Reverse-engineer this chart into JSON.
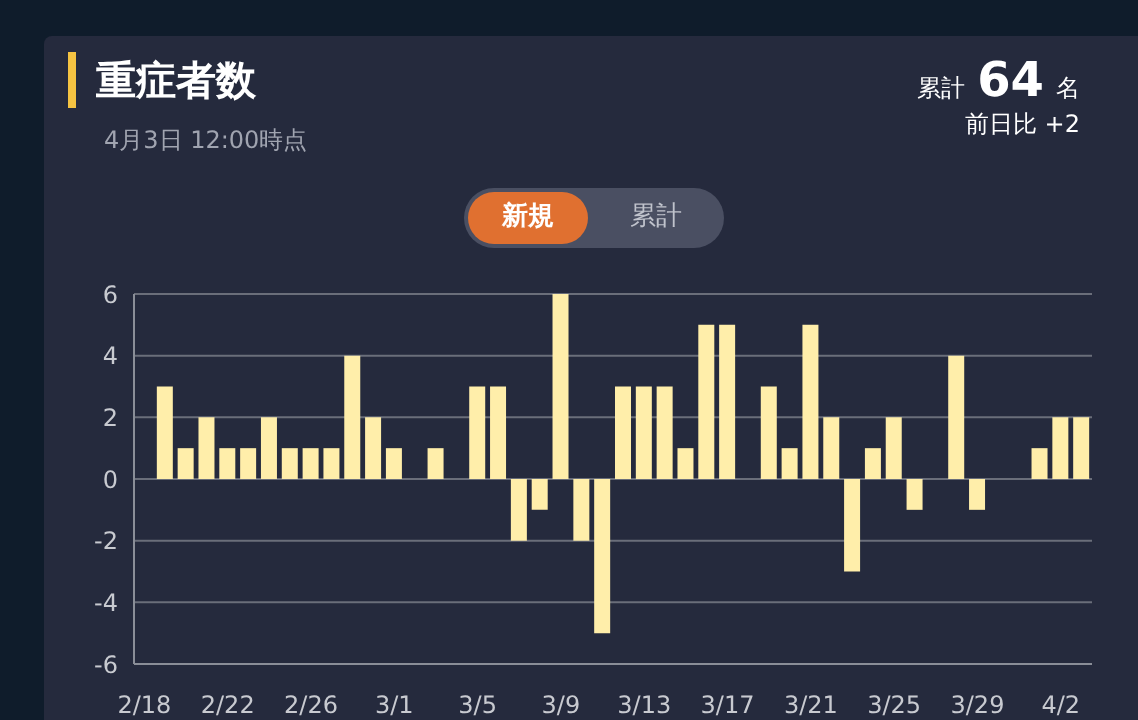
{
  "chart_data": {
    "type": "bar",
    "title": "重症者数",
    "subtitle": "4月3日 12:00時点",
    "annotations": [
      "累計",
      "64",
      "名",
      "前日比 +2",
      "新規",
      "累計"
    ],
    "categories": [
      "2/18",
      null,
      null,
      null,
      "2/22",
      null,
      null,
      null,
      "2/26",
      null,
      null,
      null,
      "3/1",
      null,
      null,
      null,
      "3/5",
      null,
      null,
      null,
      "3/9",
      null,
      null,
      null,
      "3/13",
      null,
      null,
      null,
      "3/17",
      null,
      null,
      null,
      "3/21",
      null,
      null,
      null,
      "3/25",
      null,
      null,
      null,
      "3/29",
      null,
      null,
      null,
      "4/2",
      null
    ],
    "values": [
      0,
      3,
      1,
      2,
      1,
      1,
      2,
      1,
      1,
      1,
      4,
      2,
      1,
      0,
      1,
      0,
      3,
      3,
      -2,
      -1,
      6,
      -2,
      -5,
      3,
      3,
      3,
      1,
      5,
      5,
      0,
      3,
      1,
      5,
      2,
      -3,
      1,
      2,
      -1,
      0,
      4,
      -1,
      0,
      0,
      1,
      2,
      2
    ],
    "color": "#ffeeaa",
    "ylim": [
      -6,
      6
    ],
    "yticks": [
      -6,
      -4,
      -2,
      0,
      2,
      4,
      6
    ],
    "grid": "y"
  }
}
